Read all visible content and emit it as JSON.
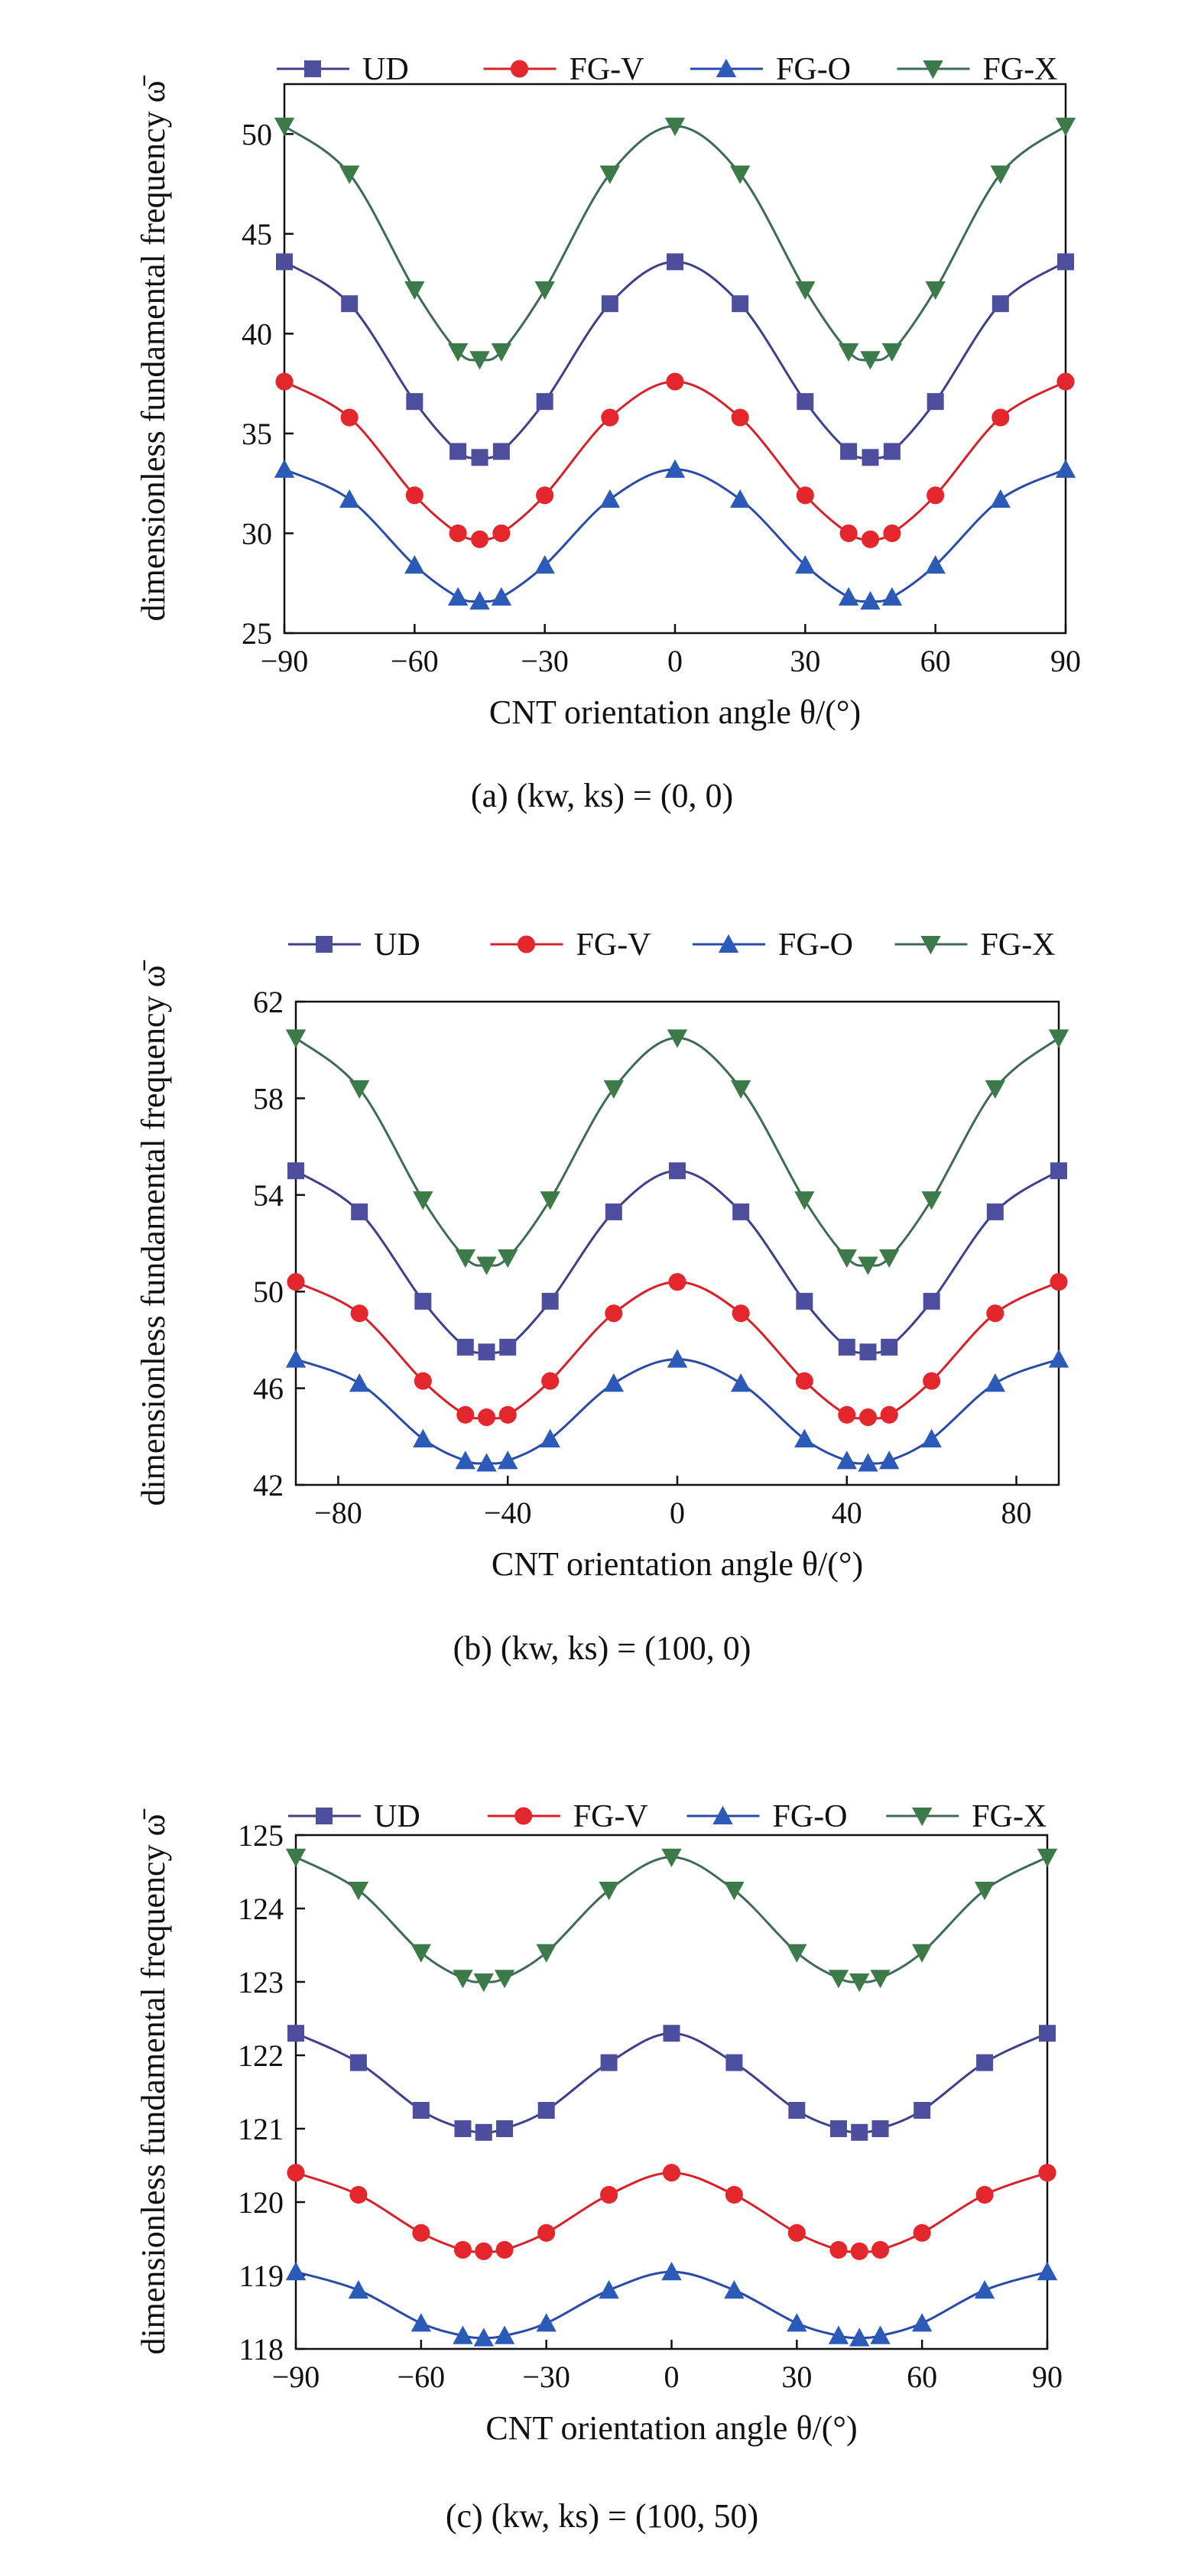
{
  "colors": {
    "UD": "#4d4f9e",
    "FG-V": "#e3272d",
    "FG-O": "#2b5ab8",
    "FG-X": "#3d7a49",
    "line_UD": "#3f3f8c",
    "line_FG-V": "#d8202a",
    "line_FG-O": "#2a4aa8",
    "line_FG-X": "#3e6b56"
  },
  "markers": {
    "UD": "square",
    "FG-V": "circle",
    "FG-O": "triangle-up",
    "FG-X": "triangle-down"
  },
  "chart_data": [
    {
      "type": "line",
      "caption": "(a) (kw, ks) = (0, 0)",
      "xlabel": "CNT orientation angle θ/(°)",
      "ylabel": "dimensionless fundamental frequency ω̄",
      "xlim": [
        -90,
        90
      ],
      "ylim": [
        25,
        52.5
      ],
      "xticks": [
        -90,
        -60,
        -30,
        0,
        30,
        60,
        90
      ],
      "xtick_labels": [
        "−90",
        "−60",
        "−30",
        "0",
        "30",
        "60",
        "90"
      ],
      "yticks": [
        25,
        30,
        35,
        40,
        45,
        50
      ],
      "ytick_labels": [
        "25",
        "30",
        "35",
        "40",
        "45",
        "50"
      ],
      "legend": "top",
      "x": [
        -90,
        -75,
        -60,
        -50,
        -45,
        -40,
        -30,
        -15,
        0,
        15,
        30,
        40,
        45,
        50,
        60,
        75,
        90
      ],
      "series": [
        {
          "name": "UD",
          "values": [
            43.6,
            41.5,
            36.6,
            34.1,
            33.8,
            34.1,
            36.6,
            41.5,
            43.6,
            41.5,
            36.6,
            34.1,
            33.8,
            34.1,
            36.6,
            41.5,
            43.6
          ]
        },
        {
          "name": "FG-V",
          "values": [
            37.6,
            35.8,
            31.9,
            30.0,
            29.7,
            30.0,
            31.9,
            35.8,
            37.6,
            35.8,
            31.9,
            30.0,
            29.7,
            30.0,
            31.9,
            35.8,
            37.6
          ]
        },
        {
          "name": "FG-O",
          "values": [
            33.2,
            31.7,
            28.4,
            26.8,
            26.6,
            26.8,
            28.4,
            31.7,
            33.2,
            31.7,
            28.4,
            26.8,
            26.6,
            26.8,
            28.4,
            31.7,
            33.2
          ]
        },
        {
          "name": "FG-X",
          "values": [
            50.4,
            48.0,
            42.2,
            39.1,
            38.7,
            39.1,
            42.2,
            48.0,
            50.4,
            48.0,
            42.2,
            39.1,
            38.7,
            39.1,
            42.2,
            48.0,
            50.4
          ]
        }
      ]
    },
    {
      "type": "line",
      "caption": "(b) (kw, ks) = (100, 0)",
      "xlabel": "CNT orientation angle θ/(°)",
      "ylabel": "dimensionless fundamental frequency ω̄",
      "xlim": [
        -90,
        90
      ],
      "ylim": [
        42,
        62
      ],
      "xticks": [
        -80,
        -40,
        0,
        40,
        80
      ],
      "xtick_labels": [
        "−80",
        "−40",
        "0",
        "40",
        "80"
      ],
      "yticks": [
        42,
        46,
        50,
        54,
        58,
        62
      ],
      "ytick_labels": [
        "42",
        "46",
        "50",
        "54",
        "58",
        "62"
      ],
      "legend": "top",
      "x": [
        -90,
        -75,
        -60,
        -50,
        -45,
        -40,
        -30,
        -15,
        0,
        15,
        30,
        40,
        45,
        50,
        60,
        75,
        90
      ],
      "series": [
        {
          "name": "UD",
          "values": [
            55.0,
            53.3,
            49.6,
            47.7,
            47.5,
            47.7,
            49.6,
            53.3,
            55.0,
            53.3,
            49.6,
            47.7,
            47.5,
            47.7,
            49.6,
            53.3,
            55.0
          ]
        },
        {
          "name": "FG-V",
          "values": [
            50.4,
            49.1,
            46.3,
            44.9,
            44.8,
            44.9,
            46.3,
            49.1,
            50.4,
            49.1,
            46.3,
            44.9,
            44.8,
            44.9,
            46.3,
            49.1,
            50.4
          ]
        },
        {
          "name": "FG-O",
          "values": [
            47.2,
            46.2,
            43.9,
            43.0,
            42.9,
            43.0,
            43.9,
            46.2,
            47.2,
            46.2,
            43.9,
            43.0,
            42.9,
            43.0,
            43.9,
            46.2,
            47.2
          ]
        },
        {
          "name": "FG-X",
          "values": [
            60.5,
            58.4,
            53.8,
            51.4,
            51.1,
            51.4,
            53.8,
            58.4,
            60.5,
            58.4,
            53.8,
            51.4,
            51.1,
            51.4,
            53.8,
            58.4,
            60.5
          ]
        }
      ]
    },
    {
      "type": "line",
      "caption": "(c) (kw, ks) = (100, 50)",
      "xlabel": "CNT orientation angle θ/(°)",
      "ylabel": "dimensionless fundamental frequency ω̄",
      "xlim": [
        -90,
        90
      ],
      "ylim": [
        118,
        125
      ],
      "xticks": [
        -90,
        -60,
        -30,
        0,
        30,
        60,
        90
      ],
      "xtick_labels": [
        "−90",
        "−60",
        "−30",
        "0",
        "30",
        "60",
        "90"
      ],
      "yticks": [
        118,
        119,
        120,
        121,
        122,
        123,
        124,
        125
      ],
      "ytick_labels": [
        "118",
        "119",
        "120",
        "121",
        "122",
        "123",
        "124",
        "125"
      ],
      "legend": "top",
      "x": [
        -90,
        -75,
        -60,
        -50,
        -45,
        -40,
        -30,
        -15,
        0,
        15,
        30,
        40,
        45,
        50,
        60,
        75,
        90
      ],
      "series": [
        {
          "name": "UD",
          "values": [
            122.3,
            121.9,
            121.25,
            121.0,
            120.95,
            121.0,
            121.25,
            121.9,
            122.3,
            121.9,
            121.25,
            121.0,
            120.95,
            121.0,
            121.25,
            121.9,
            122.3
          ]
        },
        {
          "name": "FG-V",
          "values": [
            120.4,
            120.1,
            119.58,
            119.35,
            119.33,
            119.35,
            119.58,
            120.1,
            120.4,
            120.1,
            119.58,
            119.35,
            119.33,
            119.35,
            119.58,
            120.1,
            120.4
          ]
        },
        {
          "name": "FG-O",
          "values": [
            119.05,
            118.8,
            118.35,
            118.18,
            118.15,
            118.18,
            118.35,
            118.8,
            119.05,
            118.8,
            118.35,
            118.18,
            118.15,
            118.18,
            118.35,
            118.8,
            119.05
          ]
        },
        {
          "name": "FG-X",
          "values": [
            124.7,
            124.25,
            123.4,
            123.05,
            123.0,
            123.05,
            123.4,
            124.25,
            124.7,
            124.25,
            123.4,
            123.05,
            123.0,
            123.05,
            123.4,
            124.25,
            124.7
          ]
        }
      ]
    }
  ]
}
